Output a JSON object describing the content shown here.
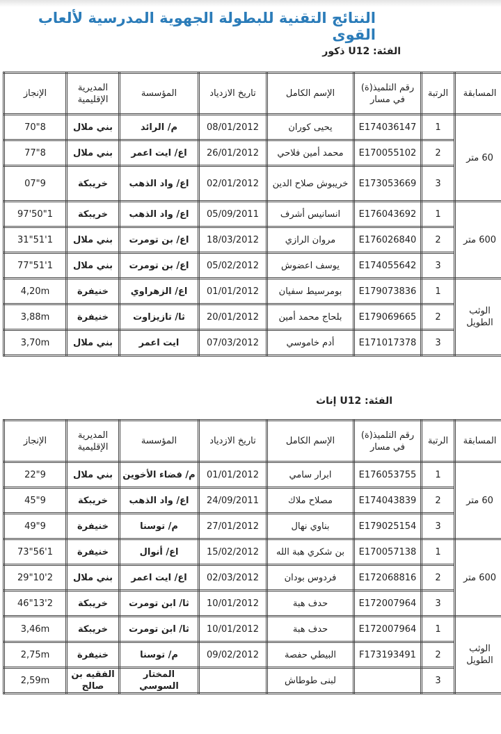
{
  "title": "النتائج التقنية للبطولة الجهوية المدرسية لألعاب القوى",
  "headers": [
    "المسابقة",
    "الرتبة",
    "رقم التلميذ(ة) في مسار",
    "الإسم الكامل",
    "تاريخ الازدياد",
    "المؤسسة",
    "المديرية الإقليمية",
    "الإنجاز"
  ],
  "tables": [
    {
      "category": "الفئة: U12 ذكور",
      "events": [
        {
          "name": "60 متر",
          "rows": [
            [
              "1",
              "E174036147",
              "يحيى كوران",
              "08/01/2012",
              "م/ الرائد",
              "بني ملال",
              "8\"70"
            ],
            [
              "2",
              "E170055102",
              "محمد أمين فلاحي",
              "26/01/2012",
              "اع/ ايت اعمر",
              "بني ملال",
              "8\"77"
            ],
            [
              "3",
              "E173053669",
              "خريبوش صلاح الدين",
              "02/01/2012",
              "اع/ واد الذهب",
              "خريبكة",
              "9\"07"
            ]
          ]
        },
        {
          "name": "600 متر",
          "rows": [
            [
              "1",
              "E176043692",
              "انسانيس أشرف",
              "05/09/2011",
              "اع/ واد الذهب",
              "خريبكة",
              "1\"50'97"
            ],
            [
              "2",
              "E176026840",
              "مروان الرازي",
              "18/03/2012",
              "اع/ بن تومرت",
              "بني ملال",
              "1'51\"31"
            ],
            [
              "3",
              "E174055642",
              "يوسف اعضوش",
              "05/02/2012",
              "اع/ بن تومرت",
              "بني ملال",
              "1'51\"77"
            ]
          ]
        },
        {
          "name": "الوثب الطويل",
          "rows": [
            [
              "1",
              "E179073836",
              "بومرسيط سفيان",
              "01/01/2012",
              "اع/ الزهراوي",
              "خنيفرة",
              "4,20m"
            ],
            [
              "2",
              "E179069665",
              "بلحاج محمد أمين",
              "20/01/2012",
              "ثا/ تازيزاوت",
              "خنيفرة",
              "3,88m"
            ],
            [
              "3",
              "E171017378",
              "أدم خاموسي",
              "07/03/2012",
              "ايت اعمر",
              "بني ملال",
              "3,70m"
            ]
          ]
        }
      ]
    },
    {
      "category": "الفئة: U12 إناث",
      "events": [
        {
          "name": "60 متر",
          "rows": [
            [
              "1",
              "E176053755",
              "ابرار سامي",
              "01/01/2012",
              "م/ فضاء الأخوين",
              "بني ملال",
              "9\"22"
            ],
            [
              "2",
              "E174043839",
              "مصلاح ملاك",
              "24/09/2011",
              "اع/ واد الذهب",
              "خريبكة",
              "9\"45"
            ],
            [
              "3",
              "E179025154",
              "بناوي نهال",
              "27/01/2012",
              "م/ توسنا",
              "خنيفرة",
              "9\"49"
            ]
          ]
        },
        {
          "name": "600 متر",
          "rows": [
            [
              "1",
              "E170057138",
              "بن شكري هبة الله",
              "15/02/2012",
              "اع/ أنوال",
              "خنيفرة",
              "1'56\"73"
            ],
            [
              "2",
              "E172068816",
              "فردوس بودان",
              "02/03/2012",
              "اع/ ايت اعمر",
              "بني ملال",
              "2'10\"29"
            ],
            [
              "3",
              "E172007964",
              "حدف هبة",
              "10/01/2012",
              "ثا/ ابن تومرت",
              "خريبكة",
              "2'13\"46"
            ]
          ]
        },
        {
          "name": "الوثب الطويل",
          "rows": [
            [
              "1",
              "E172007964",
              "حدف هبة",
              "10/01/2012",
              "ثا/ ابن تومرت",
              "خريبكة",
              "3,46m"
            ],
            [
              "2",
              "F173193491",
              "البيطي حفصة",
              "09/02/2012",
              "م/ توسنا",
              "خنيفرة",
              "2,75m"
            ],
            [
              "3",
              "",
              "لبنى طوطاش",
              "",
              "المختار السوسي",
              "الفقيه بن صالح",
              "2,59m"
            ]
          ]
        }
      ]
    }
  ]
}
